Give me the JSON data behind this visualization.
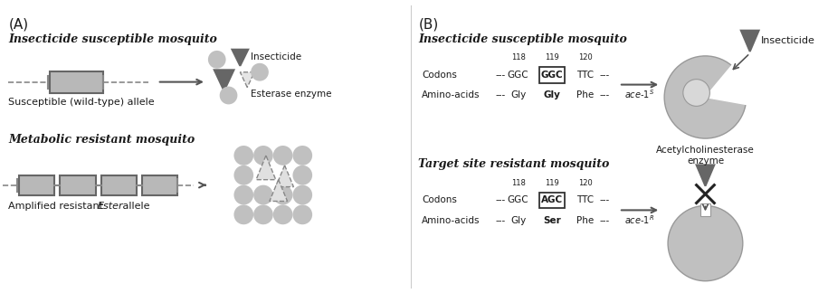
{
  "bg_color": "#ffffff",
  "panel_a_label": "(A)",
  "panel_b_label": "(B)",
  "title_susceptible_a": "Insecticide susceptible mosquito",
  "title_resistant_a": "Metabolic resistant mosquito",
  "label_susceptible_allele": "Susceptible (wild-type) allele",
  "label_amplified_1": "Amplified resistant ",
  "label_amplified_2": "Ester",
  "label_amplified_3": " allele",
  "title_susceptible_b": "Insecticide susceptible mosquito",
  "title_resistant_b": "Target site resistant mosquito",
  "label_insecticide": "Insecticide",
  "label_esterase": "Esterase enzyme",
  "label_acetyl": "Acetylcholinesterase\nenzyme",
  "gray_light": "#c0c0c0",
  "gray_medium": "#999999",
  "gray_dark": "#666666",
  "gray_box": "#b8b8b8",
  "text_color": "#1a1a1a",
  "div_line_color": "#cccccc"
}
